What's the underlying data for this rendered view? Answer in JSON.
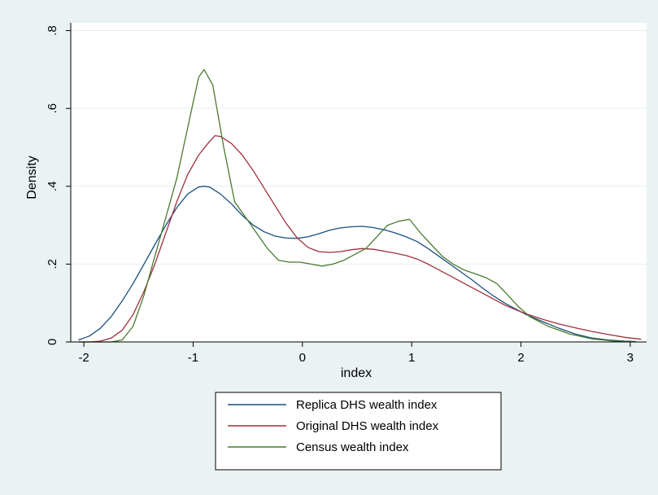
{
  "chart_data": {
    "type": "line",
    "title": "",
    "xlabel": "index",
    "ylabel": "Density",
    "xlim": [
      -2.12,
      3.15
    ],
    "ylim": [
      0,
      0.82
    ],
    "x_ticks": [
      -2,
      -1,
      0,
      1,
      2,
      3
    ],
    "x_tick_labels": [
      "-2",
      "-1",
      "0",
      "1",
      "2",
      "3"
    ],
    "y_ticks": [
      0,
      0.2,
      0.4,
      0.6,
      0.8
    ],
    "y_tick_labels": [
      "0",
      ".2",
      ".4",
      ".6",
      ".8"
    ],
    "grid": "horizontal",
    "legend_position": "bottom",
    "plot_background": "#ffffff",
    "figure_background": "#eaf2f3",
    "series": [
      {
        "name": "Replica DHS wealth index",
        "color": "#1a4f7e",
        "x": [
          -2.05,
          -1.95,
          -1.85,
          -1.75,
          -1.65,
          -1.55,
          -1.45,
          -1.35,
          -1.25,
          -1.15,
          -1.05,
          -0.95,
          -0.9,
          -0.85,
          -0.75,
          -0.65,
          -0.55,
          -0.45,
          -0.35,
          -0.25,
          -0.15,
          -0.05,
          0.05,
          0.15,
          0.25,
          0.35,
          0.45,
          0.55,
          0.65,
          0.75,
          0.85,
          0.95,
          1.05,
          1.15,
          1.25,
          1.35,
          1.45,
          1.55,
          1.65,
          1.75,
          1.85,
          1.95,
          2.05,
          2.2,
          2.35,
          2.5,
          2.65,
          2.8,
          2.95,
          3.05
        ],
        "y": [
          0.005,
          0.015,
          0.035,
          0.065,
          0.105,
          0.15,
          0.2,
          0.25,
          0.3,
          0.345,
          0.38,
          0.398,
          0.4,
          0.398,
          0.38,
          0.355,
          0.325,
          0.3,
          0.283,
          0.272,
          0.267,
          0.266,
          0.27,
          0.278,
          0.287,
          0.293,
          0.296,
          0.297,
          0.294,
          0.288,
          0.28,
          0.27,
          0.258,
          0.24,
          0.22,
          0.2,
          0.18,
          0.16,
          0.138,
          0.118,
          0.1,
          0.085,
          0.07,
          0.052,
          0.035,
          0.02,
          0.01,
          0.005,
          0.002,
          0.001
        ]
      },
      {
        "name": "Original DHS wealth index",
        "color": "#a0303c",
        "x": [
          -2.05,
          -1.95,
          -1.85,
          -1.75,
          -1.65,
          -1.55,
          -1.45,
          -1.35,
          -1.25,
          -1.15,
          -1.05,
          -0.95,
          -0.85,
          -0.8,
          -0.75,
          -0.65,
          -0.55,
          -0.45,
          -0.35,
          -0.25,
          -0.15,
          -0.05,
          0.05,
          0.15,
          0.25,
          0.35,
          0.45,
          0.55,
          0.65,
          0.75,
          0.85,
          0.95,
          1.05,
          1.15,
          1.25,
          1.35,
          1.45,
          1.55,
          1.65,
          1.75,
          1.85,
          1.95,
          2.05,
          2.2,
          2.35,
          2.5,
          2.65,
          2.8,
          2.95,
          3.1
        ],
        "y": [
          0,
          0,
          0.002,
          0.01,
          0.03,
          0.07,
          0.13,
          0.2,
          0.28,
          0.36,
          0.43,
          0.48,
          0.515,
          0.53,
          0.528,
          0.51,
          0.48,
          0.44,
          0.395,
          0.35,
          0.305,
          0.268,
          0.243,
          0.232,
          0.23,
          0.232,
          0.237,
          0.24,
          0.238,
          0.233,
          0.228,
          0.222,
          0.213,
          0.2,
          0.185,
          0.17,
          0.155,
          0.14,
          0.125,
          0.11,
          0.095,
          0.083,
          0.072,
          0.058,
          0.046,
          0.036,
          0.027,
          0.019,
          0.012,
          0.007
        ]
      },
      {
        "name": "Census wealth index",
        "color": "#4a7a2e",
        "x": [
          -2.05,
          -1.85,
          -1.75,
          -1.65,
          -1.55,
          -1.45,
          -1.35,
          -1.25,
          -1.15,
          -1.05,
          -0.95,
          -0.9,
          -0.82,
          -0.72,
          -0.62,
          -0.52,
          -0.42,
          -0.32,
          -0.22,
          -0.12,
          -0.02,
          0.08,
          0.18,
          0.28,
          0.38,
          0.48,
          0.58,
          0.68,
          0.78,
          0.88,
          0.98,
          1.08,
          1.18,
          1.28,
          1.38,
          1.48,
          1.58,
          1.68,
          1.78,
          1.88,
          1.98,
          2.08,
          2.25,
          2.45,
          2.65,
          2.85,
          3.05
        ],
        "y": [
          0,
          0,
          0,
          0.005,
          0.04,
          0.12,
          0.22,
          0.32,
          0.42,
          0.55,
          0.68,
          0.7,
          0.66,
          0.5,
          0.36,
          0.32,
          0.28,
          0.24,
          0.21,
          0.205,
          0.205,
          0.2,
          0.195,
          0.2,
          0.21,
          0.225,
          0.24,
          0.27,
          0.3,
          0.31,
          0.315,
          0.28,
          0.25,
          0.22,
          0.2,
          0.185,
          0.175,
          0.165,
          0.15,
          0.12,
          0.09,
          0.065,
          0.04,
          0.02,
          0.008,
          0.002,
          0
        ]
      }
    ]
  }
}
